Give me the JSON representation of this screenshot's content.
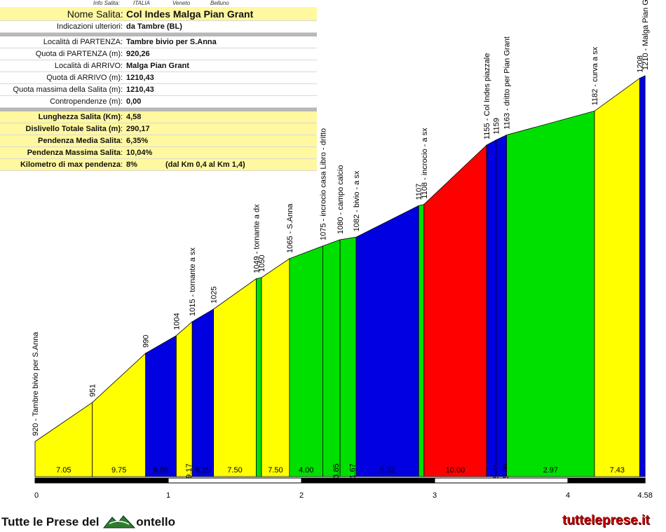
{
  "subheader": {
    "label": "Info Salita:",
    "country": "ITALIA",
    "region": "Veneto",
    "province": "Belluno"
  },
  "info": {
    "top_rows": [
      {
        "label": "Nome Salita",
        "value": "Col Indes Malga Pian Grant"
      },
      {
        "label": "Indicazioni ulteriori",
        "value": "da Tambre (BL)"
      }
    ],
    "mid_rows": [
      {
        "label": "Località di PARTENZA",
        "value": "Tambre bivio per S.Anna"
      },
      {
        "label": "Quota di PARTENZA (m)",
        "value": "920,26"
      },
      {
        "label": "Località di ARRIVO",
        "value": "Malga Pian Grant"
      },
      {
        "label": "Quota di ARRIVO (m)",
        "value": "1210,43"
      },
      {
        "label": "Quota massima della Salita (m)",
        "value": "1210,43"
      },
      {
        "label": "Contropendenze (m)",
        "value": "0,00"
      }
    ],
    "bottom_rows": [
      {
        "label": "Lunghezza Salita (Km)",
        "value": "4,58"
      },
      {
        "label": "Dislivello Totale Salita (m)",
        "value": "290,17"
      },
      {
        "label": "Pendenza Media Salita",
        "value": "6,35%"
      },
      {
        "label": "Pendenza Massima Salita",
        "value": "10,04%"
      },
      {
        "label": "Kilometro di max pendenza",
        "value": "8%",
        "extra": "(dal Km 0,4 al Km 1,4)"
      }
    ]
  },
  "chart_data": {
    "type": "area",
    "xlim": [
      0,
      4.58
    ],
    "x_ticks": [
      "0",
      "1",
      "2",
      "3",
      "4",
      "4.58"
    ],
    "colors": {
      "yellow": "#ffff00",
      "blue": "#0000e0",
      "green": "#00e000",
      "red": "#ff0000"
    },
    "points": [
      {
        "km": 0.0,
        "elev": 920,
        "label": "920 - Tambre bivio per S.Anna"
      },
      {
        "km": 0.43,
        "elev": 951,
        "label": "951"
      },
      {
        "km": 0.83,
        "elev": 990,
        "label": "990"
      },
      {
        "km": 1.06,
        "elev": 1004,
        "label": "1004"
      },
      {
        "km": 1.18,
        "elev": 1015,
        "label": "1015 - tornante a sx"
      },
      {
        "km": 1.34,
        "elev": 1025,
        "label": "1025"
      },
      {
        "km": 1.66,
        "elev": 1049,
        "label": "1049 - tornante a dx"
      },
      {
        "km": 1.7,
        "elev": 1050,
        "label": "1050"
      },
      {
        "km": 1.91,
        "elev": 1065,
        "label": "1065 - S.Anna"
      },
      {
        "km": 2.16,
        "elev": 1075,
        "label": "1075 - incrocio casa Libro - dritto"
      },
      {
        "km": 2.29,
        "elev": 1080,
        "label": "1080 - campo calcio"
      },
      {
        "km": 2.41,
        "elev": 1082,
        "label": "1082 - bivio - a sx"
      },
      {
        "km": 2.88,
        "elev": 1107,
        "label": "1107"
      },
      {
        "km": 2.92,
        "elev": 1108,
        "label": "1108 - incrocio - a sx"
      },
      {
        "km": 3.39,
        "elev": 1155,
        "label": "1155 - Col Indes piazzale"
      },
      {
        "km": 3.46,
        "elev": 1159,
        "label": "1159"
      },
      {
        "km": 3.54,
        "elev": 1163,
        "label": "1163 - dritto per Pian Grant"
      },
      {
        "km": 4.2,
        "elev": 1182,
        "label": "1182 - curva a sx"
      },
      {
        "km": 4.54,
        "elev": 1208,
        "label": "1208"
      },
      {
        "km": 4.58,
        "elev": 1210,
        "label": "1210 - Malga Pian Grant"
      }
    ],
    "segments": [
      {
        "grade": "7.05",
        "color": "yellow"
      },
      {
        "grade": "9.75",
        "color": "yellow"
      },
      {
        "grade": "6.09",
        "color": "blue"
      },
      {
        "grade": "9.17",
        "color": "yellow"
      },
      {
        "grade": "6.25",
        "color": "blue"
      },
      {
        "grade": "7.50",
        "color": "yellow"
      },
      {
        "grade": "",
        "color": "green"
      },
      {
        "grade": "7.50",
        "color": "yellow"
      },
      {
        "grade": "4.00",
        "color": "green"
      },
      {
        "grade": "3.85",
        "color": "green"
      },
      {
        "grade": "1.67",
        "color": "green"
      },
      {
        "grade": "5.32",
        "color": "blue"
      },
      {
        "grade": "",
        "color": "green"
      },
      {
        "grade": "10.00",
        "color": "red"
      },
      {
        "grade": "5.71",
        "color": "blue"
      },
      {
        "grade": "5.00",
        "color": "blue"
      },
      {
        "grade": "2.97",
        "color": "green"
      },
      {
        "grade": "7.43",
        "color": "yellow"
      },
      {
        "grade": "",
        "color": "blue"
      }
    ]
  },
  "footer": {
    "left_text_a": "Tutte le Prese del",
    "left_text_b": "ontello",
    "right_text": "tutteleprese.it"
  }
}
